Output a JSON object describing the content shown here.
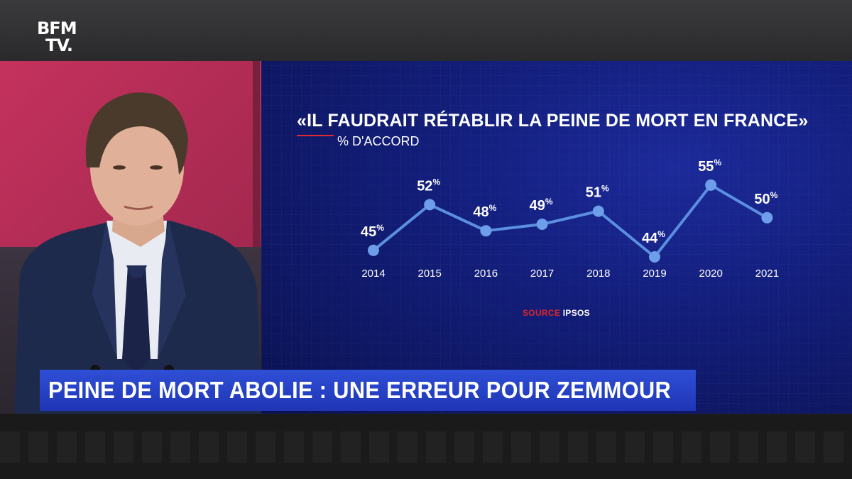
{
  "logo": {
    "line1": "BFM",
    "line2": "TV."
  },
  "chart": {
    "title": "«IL FAUDRAIT RÉTABLIR LA PEINE DE MORT EN FRANCE»",
    "subtitle": "% D'ACCORD",
    "source_label": "SOURCE",
    "source_value": "IPSOS"
  },
  "chart_data": {
    "type": "line",
    "title": "«IL FAUDRAIT RÉTABLIR LA PEINE DE MORT EN FRANCE»",
    "ylabel": "% D'ACCORD",
    "categories": [
      "2014",
      "2015",
      "2016",
      "2017",
      "2018",
      "2019",
      "2020",
      "2021"
    ],
    "values": [
      45,
      52,
      48,
      49,
      51,
      44,
      55,
      50
    ],
    "value_suffix": "%",
    "grid": false,
    "colors": {
      "line": "#5b8fe0",
      "marker": "#6e9eea",
      "labels": "#ffffff"
    }
  },
  "banner": {
    "text": "PEINE DE MORT ABOLIE : UNE ERREUR POUR ZEMMOUR"
  },
  "colors": {
    "banner": "#2444c8",
    "panel": "#121d78",
    "accent": "#e2292f"
  }
}
